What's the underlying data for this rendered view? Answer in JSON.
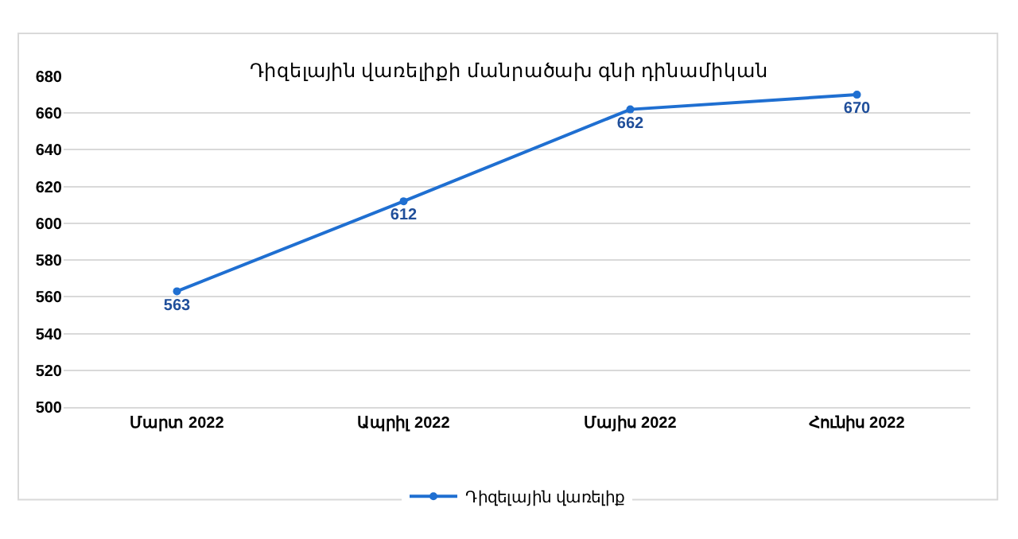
{
  "chart_data": {
    "type": "line",
    "title": "Դիզելային վառելիքի մանրածախ գնի դինամիկան",
    "categories": [
      "Մարտ 2022",
      "Ապրիլ 2022",
      "Մայիս 2022",
      "Հունիս 2022"
    ],
    "series": [
      {
        "name": "Դիզելային վառելիք",
        "color": "#1f6fd1",
        "values": [
          563,
          612,
          662,
          670
        ]
      }
    ],
    "ylim": [
      500,
      680
    ],
    "yticks": [
      500,
      520,
      540,
      560,
      580,
      600,
      620,
      640,
      660,
      680
    ],
    "grid": "y",
    "legend": "bottom",
    "marker": "circle",
    "line_style": "solid",
    "data_labels": true
  }
}
